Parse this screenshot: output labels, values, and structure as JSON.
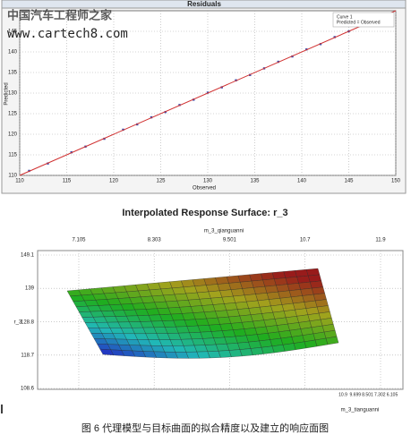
{
  "watermark": [
    "中国汽车工程师之家",
    "www.cartech8.com"
  ],
  "caption": "图 6   代理模型与目标曲面的拟合精度以及建立的响应面图",
  "chart_data": [
    {
      "type": "scatter",
      "title": "Residuals",
      "x_label": "Observed",
      "y_label": "Predicted",
      "xlim": [
        110,
        150
      ],
      "ylim": [
        110,
        150
      ],
      "xticks": [
        110,
        115,
        120,
        125,
        130,
        135,
        140,
        145,
        150
      ],
      "yticks": [
        110,
        115,
        120,
        125,
        130,
        135,
        140,
        145
      ],
      "grid": true,
      "legend": "top-right",
      "series": [
        {
          "name": "Curve 1",
          "color": "#3a4fb0",
          "x": [
            111,
            113,
            115.5,
            117,
            119,
            121,
            122.5,
            124,
            125.5,
            127,
            128.5,
            130,
            131.5,
            133,
            134.5,
            136,
            137.5,
            139,
            140.5,
            142,
            143.5,
            145
          ],
          "values": [
            111.1,
            112.9,
            115.6,
            117,
            118.9,
            121.1,
            122.4,
            124.1,
            125.4,
            127.1,
            128.4,
            130.1,
            131.4,
            133.1,
            134.4,
            136,
            137.6,
            138.9,
            140.6,
            141.9,
            143.6,
            145
          ]
        },
        {
          "name": "Predicted = Observed",
          "color": "#d03030",
          "x": [
            110,
            150
          ],
          "values": [
            110,
            150
          ]
        }
      ]
    },
    {
      "type": "surface",
      "title": "Interpolated Response Surface: r_3",
      "x_label": "m_3_qianguanni",
      "y_label": "r_3",
      "z_label": "m_3_tianguanni",
      "xlim": [
        7.105,
        11.9
      ],
      "xticks": [
        7.105,
        8.303,
        9.501,
        10.7,
        11.9
      ],
      "ylim": [
        108.6,
        149.1
      ],
      "yticks": [
        149.1,
        139,
        128.8,
        118.7,
        108.6
      ],
      "zlim": [
        10.9,
        6.105
      ],
      "zticks": [
        10.9,
        9.699,
        8.501,
        7.302,
        6.105
      ]
    }
  ]
}
